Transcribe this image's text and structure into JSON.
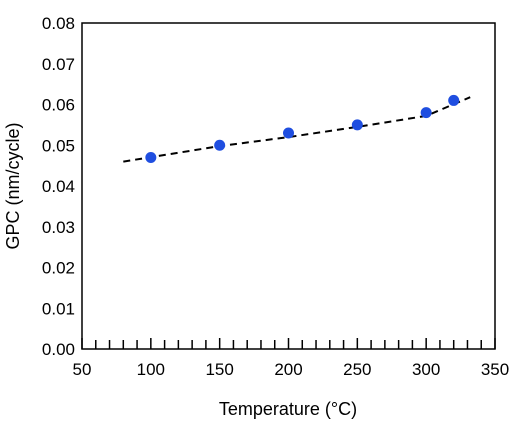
{
  "chart_data": {
    "type": "scatter",
    "title": "",
    "xlabel": "Temperature (°C)",
    "ylabel": "GPC (nm/cycle)",
    "xlim": [
      50,
      350
    ],
    "ylim": [
      0,
      0.08
    ],
    "x_ticks": [
      50,
      100,
      150,
      200,
      250,
      300,
      350
    ],
    "x_tick_labels": [
      "50",
      "100",
      "150",
      "200",
      "250",
      "300",
      "350"
    ],
    "y_ticks": [
      0,
      0.01,
      0.02,
      0.03,
      0.04,
      0.05,
      0.06,
      0.07,
      0.08
    ],
    "y_tick_labels": [
      "0.00",
      "0.01",
      "0.02",
      "0.03",
      "0.04",
      "0.05",
      "0.06",
      "0.07",
      "0.08"
    ],
    "grid": false,
    "legend": "none",
    "series": [
      {
        "type": "scatter",
        "color": "#1f4ee0",
        "points": [
          {
            "x": 100,
            "y": 0.047
          },
          {
            "x": 150,
            "y": 0.05
          },
          {
            "x": 200,
            "y": 0.053
          },
          {
            "x": 250,
            "y": 0.055
          },
          {
            "x": 300,
            "y": 0.058
          },
          {
            "x": 320,
            "y": 0.061
          }
        ]
      },
      {
        "type": "line",
        "style": "dashed",
        "color": "#000000",
        "points": [
          {
            "x": 80,
            "y": 0.046
          },
          {
            "x": 150,
            "y": 0.0498
          },
          {
            "x": 200,
            "y": 0.052
          },
          {
            "x": 250,
            "y": 0.0545
          },
          {
            "x": 300,
            "y": 0.0572
          },
          {
            "x": 332,
            "y": 0.0618
          }
        ]
      }
    ]
  }
}
